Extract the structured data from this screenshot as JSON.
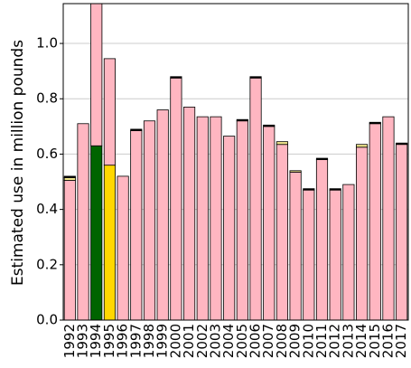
{
  "chart_data": {
    "type": "stacked_bar",
    "y_label": "Estimated use in million pounds",
    "categories": [
      "1992",
      "1993",
      "1994",
      "1995",
      "1996",
      "1997",
      "1998",
      "1999",
      "2000",
      "2001",
      "2002",
      "2003",
      "2004",
      "2005",
      "2006",
      "2007",
      "2008",
      "2009",
      "2010",
      "2011",
      "2012",
      "2013",
      "2014",
      "2015",
      "2016",
      "2017"
    ],
    "series": [
      {
        "color": "#006400",
        "values": [
          0,
          0,
          0.63,
          0,
          0,
          0,
          0,
          0,
          0,
          0,
          0,
          0,
          0,
          0,
          0,
          0,
          0,
          0,
          0,
          0,
          0,
          0,
          0,
          0,
          0,
          0
        ]
      },
      {
        "color": "#ffd700",
        "values": [
          0,
          0,
          0,
          0.56,
          0,
          0,
          0,
          0,
          0,
          0,
          0,
          0,
          0,
          0,
          0,
          0,
          0,
          0,
          0,
          0,
          0,
          0,
          0,
          0,
          0,
          0
        ]
      },
      {
        "color": "#ffb6c1",
        "values": [
          0.505,
          0.71,
          0.52,
          0.385,
          0.52,
          0.685,
          0.72,
          0.76,
          0.875,
          0.77,
          0.735,
          0.735,
          0.665,
          0.72,
          0.875,
          0.7,
          0.635,
          0.535,
          0.47,
          0.58,
          0.47,
          0.49,
          0.625,
          0.71,
          0.735,
          0.635
        ]
      },
      {
        "color": "#f0e68c",
        "values": [
          0.01,
          0,
          0,
          0,
          0,
          0,
          0,
          0,
          0,
          0,
          0,
          0,
          0,
          0,
          0,
          0,
          0.01,
          0.005,
          0,
          0,
          0,
          0,
          0.01,
          0,
          0,
          0
        ]
      },
      {
        "color": "#000000",
        "values": [
          0.005,
          0,
          0,
          0,
          0,
          0.005,
          0,
          0,
          0.005,
          0,
          0,
          0,
          0,
          0.005,
          0.005,
          0.005,
          0,
          0,
          0.005,
          0.005,
          0.005,
          0,
          0,
          0.005,
          0,
          0.005
        ]
      }
    ],
    "ylim": [
      0,
      1.144
    ],
    "yticks": [
      {
        "value": 0,
        "label": "0.0"
      },
      0.2,
      0.4,
      0.6,
      0.8,
      {
        "value": 1,
        "label": "1.0"
      }
    ],
    "grid": true
  }
}
